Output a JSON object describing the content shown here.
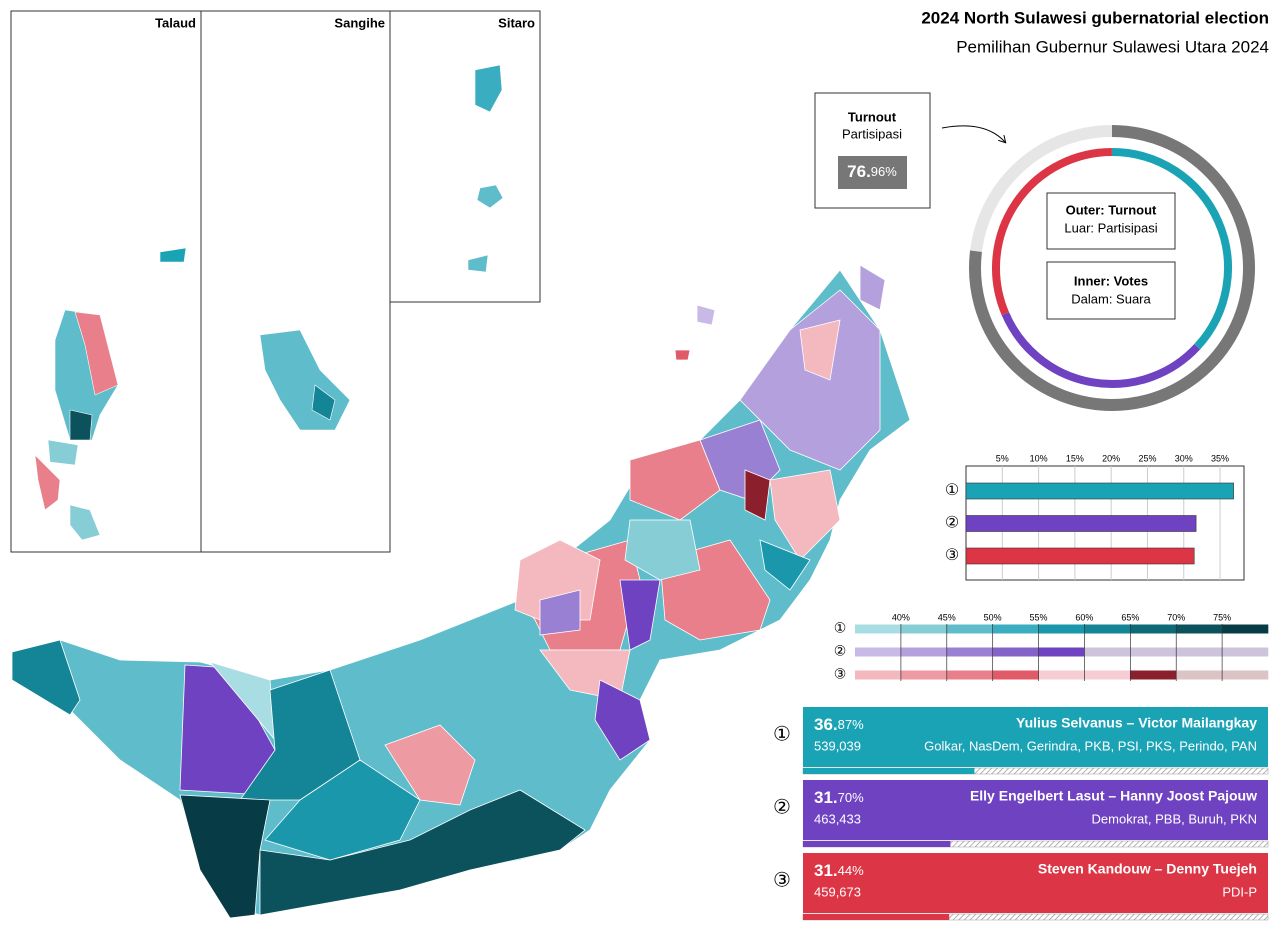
{
  "header": {
    "title": "2024 North Sulawesi gubernatorial election",
    "subtitle": "Pemilihan Gubernur Sulawesi Utara 2024"
  },
  "insets": [
    "Talaud",
    "Sangihe",
    "Sitaro"
  ],
  "turnout": {
    "label": "Turnout",
    "sublabel": "Partisipasi",
    "value": 76.96,
    "whole": "76.",
    "fraction": "96%",
    "color": "#777777",
    "rest_color": "#e6e6e6"
  },
  "donut_legend": {
    "outer": "Outer: Turnout",
    "outer_sub": "Luar: Partisipasi",
    "inner": "Inner: Votes",
    "inner_sub": "Dalam: Suara"
  },
  "chart_data": [
    {
      "type": "bar",
      "orientation": "horizontal",
      "categories": [
        "①",
        "②",
        "③"
      ],
      "values": [
        36.87,
        31.7,
        31.44
      ],
      "colors": [
        "#1aa3b5",
        "#6f42c1",
        "#dc3545"
      ],
      "xlim": [
        0,
        38.3
      ],
      "grid": true,
      "xticks": [
        {
          "value": 5,
          "label": "5%"
        },
        {
          "value": 10,
          "label": "10%"
        },
        {
          "value": 15,
          "label": "15%"
        },
        {
          "value": 20,
          "label": "20%"
        },
        {
          "value": 25,
          "label": "25%"
        },
        {
          "value": 30,
          "label": "30%"
        },
        {
          "value": 35,
          "label": "35%"
        }
      ]
    },
    {
      "type": "colorscale",
      "categories": [
        "①",
        "②",
        "③"
      ],
      "xlim": [
        35,
        80
      ],
      "grid": true,
      "xticks": [
        {
          "value": 40,
          "label": "40%"
        },
        {
          "value": 45,
          "label": "45%"
        },
        {
          "value": 50,
          "label": "50%"
        },
        {
          "value": 55,
          "label": "55%"
        },
        {
          "value": 60,
          "label": "60%"
        },
        {
          "value": 65,
          "label": "65%"
        },
        {
          "value": 70,
          "label": "70%"
        },
        {
          "value": 75,
          "label": "75%"
        }
      ],
      "colors": [
        [
          "#a8dde3",
          "#86cdd6",
          "#5fbccb",
          "#3aaec0",
          "#1a97ab",
          "#138596",
          "#0f6a78",
          "#0b525d",
          "#073b45"
        ],
        [
          "#c9b9e6",
          "#b3a0dd",
          "#9a80d2",
          "#8463c9",
          "#6f42c1",
          "#cdc3db",
          "#cdc3db",
          "#cdc3db",
          "#cdc3db"
        ],
        [
          "#f4b8bf",
          "#ee9aa3",
          "#e87f8a",
          "#e05a67",
          "#f6cdd2",
          "#f6cdd2",
          "#8b1f2c",
          "#dcc3c6",
          "#dcc3c6"
        ]
      ]
    }
  ],
  "candidates": [
    {
      "number": "①",
      "pct": 36.87,
      "pct_whole": "36.",
      "pct_frac": "87%",
      "votes": "539,039",
      "names": "Yulius Selvanus – Victor Mailangkay",
      "parties": "Golkar, NasDem, Gerindra, PKB, PSI, PKS, Perindo, PAN",
      "color": "#1aa3b5"
    },
    {
      "number": "②",
      "pct": 31.7,
      "pct_whole": "31.",
      "pct_frac": "70%",
      "votes": "463,433",
      "names": "Elly Engelbert Lasut – Hanny Joost Pajouw",
      "parties": "Demokrat, PBB, Buruh, PKN",
      "color": "#6f42c1"
    },
    {
      "number": "③",
      "pct": 31.44,
      "pct_whole": "31.",
      "pct_frac": "44%",
      "votes": "459,673",
      "names": "Steven Kandouw – Denny Tuejeh",
      "parties": "PDI-P",
      "color": "#dc3545"
    }
  ]
}
